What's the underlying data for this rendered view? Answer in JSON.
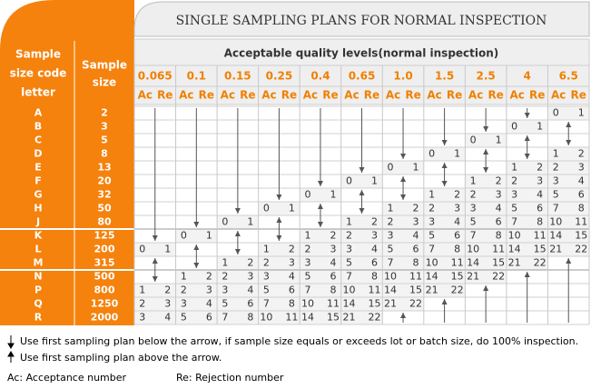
{
  "header": {
    "title": "SINGLE SAMPLING PLANS FOR NORMAL INSPECTION",
    "code_letter": [
      "Sample",
      "size code",
      "letter"
    ],
    "sample_size": [
      "Sample",
      "size"
    ],
    "aql_title": "Acceptable quality levels(normal inspection)",
    "ac": "Ac",
    "re": "Re"
  },
  "rows": {
    "letters": [
      "A",
      "B",
      "C",
      "D",
      "E",
      "F",
      "G",
      "H",
      "J",
      "K",
      "L",
      "M",
      "N",
      "P",
      "Q",
      "R"
    ],
    "sizes": [
      2,
      3,
      5,
      8,
      13,
      20,
      32,
      50,
      80,
      125,
      200,
      315,
      500,
      800,
      1250,
      2000
    ]
  },
  "columns": [
    {
      "aql": "0.065",
      "plans": [
        null,
        null,
        null,
        null,
        null,
        null,
        null,
        null,
        null,
        null,
        [
          0,
          1
        ],
        null,
        null,
        [
          1,
          2
        ],
        [
          2,
          3
        ],
        [
          3,
          4
        ]
      ]
    },
    {
      "aql": "0.1",
      "plans": [
        null,
        null,
        null,
        null,
        null,
        null,
        null,
        null,
        null,
        [
          0,
          1
        ],
        null,
        null,
        [
          1,
          2
        ],
        [
          2,
          3
        ],
        [
          3,
          4
        ],
        [
          5,
          6
        ]
      ]
    },
    {
      "aql": "0.15",
      "plans": [
        null,
        null,
        null,
        null,
        null,
        null,
        null,
        null,
        [
          0,
          1
        ],
        null,
        null,
        [
          1,
          2
        ],
        [
          2,
          3
        ],
        [
          3,
          4
        ],
        [
          5,
          6
        ],
        [
          7,
          8
        ]
      ]
    },
    {
      "aql": "0.25",
      "plans": [
        null,
        null,
        null,
        null,
        null,
        null,
        null,
        [
          0,
          1
        ],
        null,
        null,
        [
          1,
          2
        ],
        [
          2,
          3
        ],
        [
          3,
          4
        ],
        [
          5,
          6
        ],
        [
          7,
          8
        ],
        [
          10,
          11
        ]
      ]
    },
    {
      "aql": "0.4",
      "plans": [
        null,
        null,
        null,
        null,
        null,
        null,
        [
          0,
          1
        ],
        null,
        null,
        [
          1,
          2
        ],
        [
          2,
          3
        ],
        [
          3,
          4
        ],
        [
          5,
          6
        ],
        [
          7,
          8
        ],
        [
          10,
          11
        ],
        [
          14,
          15
        ]
      ]
    },
    {
      "aql": "0.65",
      "plans": [
        null,
        null,
        null,
        null,
        null,
        [
          0,
          1
        ],
        null,
        null,
        [
          1,
          2
        ],
        [
          2,
          3
        ],
        [
          3,
          4
        ],
        [
          5,
          6
        ],
        [
          7,
          8
        ],
        [
          10,
          11
        ],
        [
          14,
          15
        ],
        [
          21,
          22
        ]
      ]
    },
    {
      "aql": "1.0",
      "plans": [
        null,
        null,
        null,
        null,
        [
          0,
          1
        ],
        null,
        null,
        [
          1,
          2
        ],
        [
          2,
          3
        ],
        [
          3,
          4
        ],
        [
          5,
          6
        ],
        [
          7,
          8
        ],
        [
          10,
          11
        ],
        [
          14,
          15
        ],
        [
          21,
          22
        ],
        null
      ]
    },
    {
      "aql": "1.5",
      "plans": [
        null,
        null,
        null,
        [
          0,
          1
        ],
        null,
        null,
        [
          1,
          2
        ],
        [
          2,
          3
        ],
        [
          3,
          4
        ],
        [
          5,
          6
        ],
        [
          7,
          8
        ],
        [
          10,
          11
        ],
        [
          14,
          15
        ],
        [
          21,
          22
        ],
        null,
        null
      ]
    },
    {
      "aql": "2.5",
      "plans": [
        null,
        null,
        [
          0,
          1
        ],
        null,
        null,
        [
          1,
          2
        ],
        [
          2,
          3
        ],
        [
          3,
          4
        ],
        [
          5,
          6
        ],
        [
          7,
          8
        ],
        [
          10,
          11
        ],
        [
          14,
          15
        ],
        [
          21,
          22
        ],
        null,
        null,
        null
      ]
    },
    {
      "aql": "4",
      "plans": [
        null,
        [
          0,
          1
        ],
        null,
        null,
        [
          1,
          2
        ],
        [
          2,
          3
        ],
        [
          3,
          4
        ],
        [
          5,
          6
        ],
        [
          7,
          8
        ],
        [
          10,
          11
        ],
        [
          14,
          15
        ],
        [
          21,
          22
        ],
        null,
        null,
        null,
        null
      ]
    },
    {
      "aql": "6.5",
      "plans": [
        [
          0,
          1
        ],
        null,
        null,
        [
          1,
          2
        ],
        [
          2,
          3
        ],
        [
          3,
          4
        ],
        [
          5,
          6
        ],
        [
          7,
          8
        ],
        [
          10,
          11
        ],
        [
          14,
          15
        ],
        [
          21,
          22
        ],
        null,
        null,
        null,
        null,
        null
      ]
    }
  ],
  "notes": {
    "down": "Use first sampling plan below the arrow, if sample size equals or exceeds lot or batch size, do 100% inspection.",
    "up": "Use first sampling plan above the arrow.",
    "ac": "Ac: Acceptance number",
    "re": "Re: Rejection number"
  }
}
